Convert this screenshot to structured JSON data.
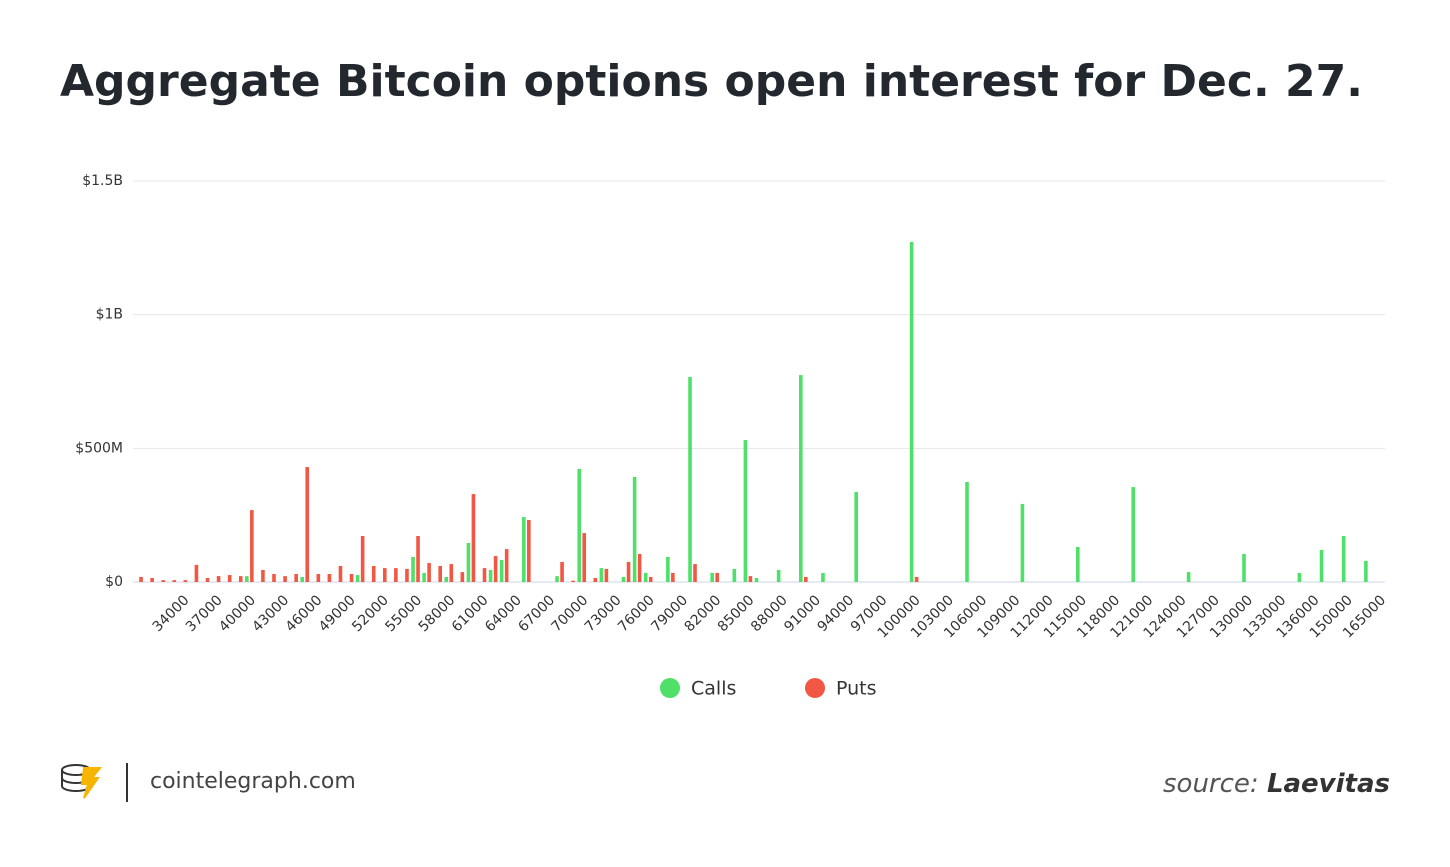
{
  "chart_data": {
    "type": "bar",
    "title": "Aggregate Bitcoin options open interest for Dec. 27.",
    "categories": [
      null,
      null,
      null,
      null,
      "34000",
      null,
      null,
      "37000",
      null,
      null,
      "40000",
      null,
      null,
      "43000",
      null,
      null,
      "46000",
      null,
      null,
      "49000",
      null,
      null,
      "52000",
      null,
      null,
      "55000",
      null,
      null,
      "58000",
      null,
      null,
      "61000",
      null,
      null,
      "64000",
      null,
      null,
      "67000",
      null,
      null,
      "70000",
      null,
      null,
      "73000",
      null,
      null,
      "76000",
      null,
      null,
      "79000",
      null,
      null,
      "82000",
      null,
      null,
      "85000",
      null,
      null,
      "88000",
      null,
      null,
      "91000",
      null,
      null,
      "94000",
      null,
      null,
      "97000",
      null,
      null,
      "100000",
      null,
      null,
      "103000",
      null,
      null,
      "106000",
      null,
      null,
      "109000",
      null,
      null,
      "112000",
      null,
      null,
      "115000",
      null,
      null,
      "118000",
      null,
      null,
      "121000",
      null,
      null,
      "124000",
      null,
      null,
      "127000",
      null,
      null,
      "130000",
      null,
      null,
      "133000",
      null,
      null,
      "136000",
      null,
      null,
      "150000",
      null,
      null,
      "165000"
    ],
    "series": [
      {
        "name": "Calls",
        "color": "#4fe06a",
        "values": [
          0,
          0,
          0,
          0,
          0,
          0,
          0,
          0,
          0,
          0,
          22000000,
          0,
          0,
          0,
          0,
          19000000,
          0,
          0,
          0,
          0,
          26000000,
          0,
          0,
          0,
          0,
          94000000,
          34000000,
          0,
          19000000,
          0,
          146000000,
          0,
          45000000,
          82000000,
          0,
          243000000,
          0,
          0,
          22000000,
          0,
          423000000,
          0,
          52000000,
          0,
          19000000,
          393000000,
          34000000,
          0,
          94000000,
          0,
          767000000,
          0,
          34000000,
          0,
          49000000,
          531000000,
          15000000,
          0,
          45000000,
          0,
          774000000,
          0,
          34000000,
          0,
          0,
          337000000,
          0,
          0,
          0,
          0,
          1272000000,
          0,
          0,
          0,
          0,
          374000000,
          0,
          0,
          0,
          0,
          292000000,
          0,
          0,
          0,
          0,
          131000000,
          0,
          0,
          0,
          0,
          355000000,
          0,
          0,
          0,
          0,
          37000000,
          0,
          0,
          0,
          0,
          105000000,
          0,
          0,
          0,
          0,
          34000000,
          0,
          120000000,
          0,
          172000000,
          0,
          79000000,
          0
        ]
      },
      {
        "name": "Puts",
        "color": "#f25744",
        "values": [
          19000000,
          15000000,
          7000000,
          7000000,
          7000000,
          64000000,
          15000000,
          22000000,
          26000000,
          22000000,
          269000000,
          45000000,
          30000000,
          22000000,
          30000000,
          430000000,
          30000000,
          30000000,
          60000000,
          30000000,
          172000000,
          60000000,
          52000000,
          52000000,
          49000000,
          172000000,
          71000000,
          60000000,
          67000000,
          37000000,
          329000000,
          52000000,
          97000000,
          123000000,
          0,
          232000000,
          0,
          0,
          75000000,
          5000000,
          183000000,
          15000000,
          49000000,
          0,
          75000000,
          105000000,
          19000000,
          0,
          34000000,
          0,
          67000000,
          0,
          34000000,
          0,
          0,
          22000000,
          0,
          0,
          0,
          0,
          19000000,
          0,
          0,
          0,
          0,
          0,
          0,
          0,
          0,
          0,
          19000000,
          0,
          0,
          0,
          0,
          0,
          0,
          0,
          0,
          0,
          0,
          0,
          0,
          0,
          0,
          0,
          0,
          0,
          0,
          0,
          0,
          0,
          0,
          0,
          0,
          0,
          0,
          0,
          0,
          0,
          0,
          0,
          0,
          0,
          0,
          0,
          0,
          0,
          0,
          0,
          0,
          0,
          0
        ]
      }
    ],
    "ylim": [
      0,
      1500000000
    ],
    "yticks": [
      {
        "value": 0,
        "label": "$0"
      },
      {
        "value": 500000000,
        "label": "$500M"
      },
      {
        "value": 1000000000,
        "label": "$1B"
      },
      {
        "value": 1500000000,
        "label": "$1.5B"
      }
    ],
    "grid": true,
    "legend": "bottom"
  },
  "footer": {
    "site": "cointelegraph.com",
    "source_label": "source:",
    "source_name": "Laevitas"
  }
}
